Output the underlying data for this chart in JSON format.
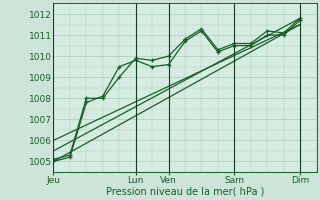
{
  "title": "",
  "xlabel": "Pression niveau de la mer( hPa )",
  "bg_color": "#cce5d8",
  "plot_bg_color": "#d5ece0",
  "grid_color": "#aacfb8",
  "line_color": "#1a5c2a",
  "dark_line_color": "#0d3d1a",
  "ylim": [
    1004.5,
    1012.5
  ],
  "yticks": [
    1005,
    1006,
    1007,
    1008,
    1009,
    1010,
    1011,
    1012
  ],
  "x_day_labels": [
    "Jeu",
    "Lun",
    "Ven",
    "Sam",
    "Dim"
  ],
  "x_day_positions": [
    0,
    10,
    14,
    22,
    30
  ],
  "x_vlines": [
    0,
    10,
    14,
    22,
    30
  ],
  "xlim": [
    0,
    32
  ],
  "series1_x": [
    0,
    2,
    4,
    6,
    8,
    10,
    12,
    14,
    16,
    18,
    20,
    22,
    24,
    26,
    28,
    30
  ],
  "series1_y": [
    1005.0,
    1005.2,
    1007.8,
    1008.1,
    1009.5,
    1009.8,
    1009.5,
    1009.6,
    1010.7,
    1011.2,
    1010.2,
    1010.5,
    1010.5,
    1011.0,
    1011.0,
    1011.7
  ],
  "series2_x": [
    0,
    2,
    4,
    6,
    8,
    10,
    12,
    14,
    16,
    18,
    20,
    22,
    24,
    26,
    28,
    30
  ],
  "series2_y": [
    1005.1,
    1005.3,
    1008.0,
    1008.0,
    1009.0,
    1009.9,
    1009.8,
    1010.0,
    1010.8,
    1011.3,
    1010.3,
    1010.6,
    1010.6,
    1011.2,
    1011.1,
    1011.8
  ],
  "trend1_x": [
    0,
    30
  ],
  "trend1_y": [
    1005.0,
    1011.5
  ],
  "trend2_x": [
    0,
    30
  ],
  "trend2_y": [
    1005.5,
    1011.8
  ],
  "trend3_x": [
    0,
    30
  ],
  "trend3_y": [
    1006.0,
    1011.5
  ],
  "n_points": 31,
  "marker_size": 3.5,
  "line_width": 0.9
}
